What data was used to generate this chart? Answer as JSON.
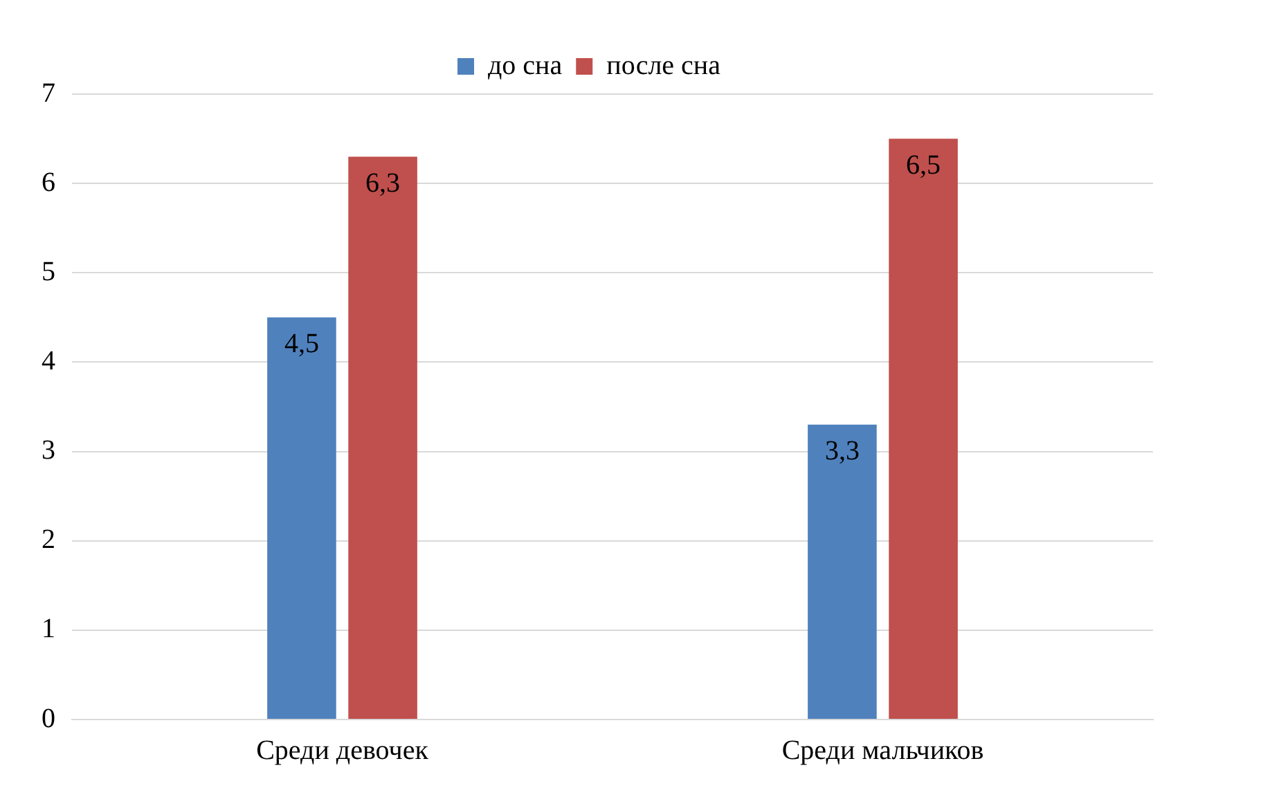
{
  "chart_data": {
    "type": "bar",
    "categories": [
      "Среди девочек",
      "Среди мальчиков"
    ],
    "series": [
      {
        "name": "до сна",
        "color": "#4f81bd",
        "values": [
          4.5,
          3.3
        ],
        "value_labels": [
          "4,5",
          "3,3"
        ]
      },
      {
        "name": "после сна",
        "color": "#c0504d",
        "values": [
          6.3,
          6.5
        ],
        "value_labels": [
          "6,3",
          "6,5"
        ]
      }
    ],
    "ylim": [
      0,
      7
    ],
    "yticks": [
      0,
      1,
      2,
      3,
      4,
      5,
      6,
      7
    ],
    "grid": "y",
    "legend": "top"
  }
}
